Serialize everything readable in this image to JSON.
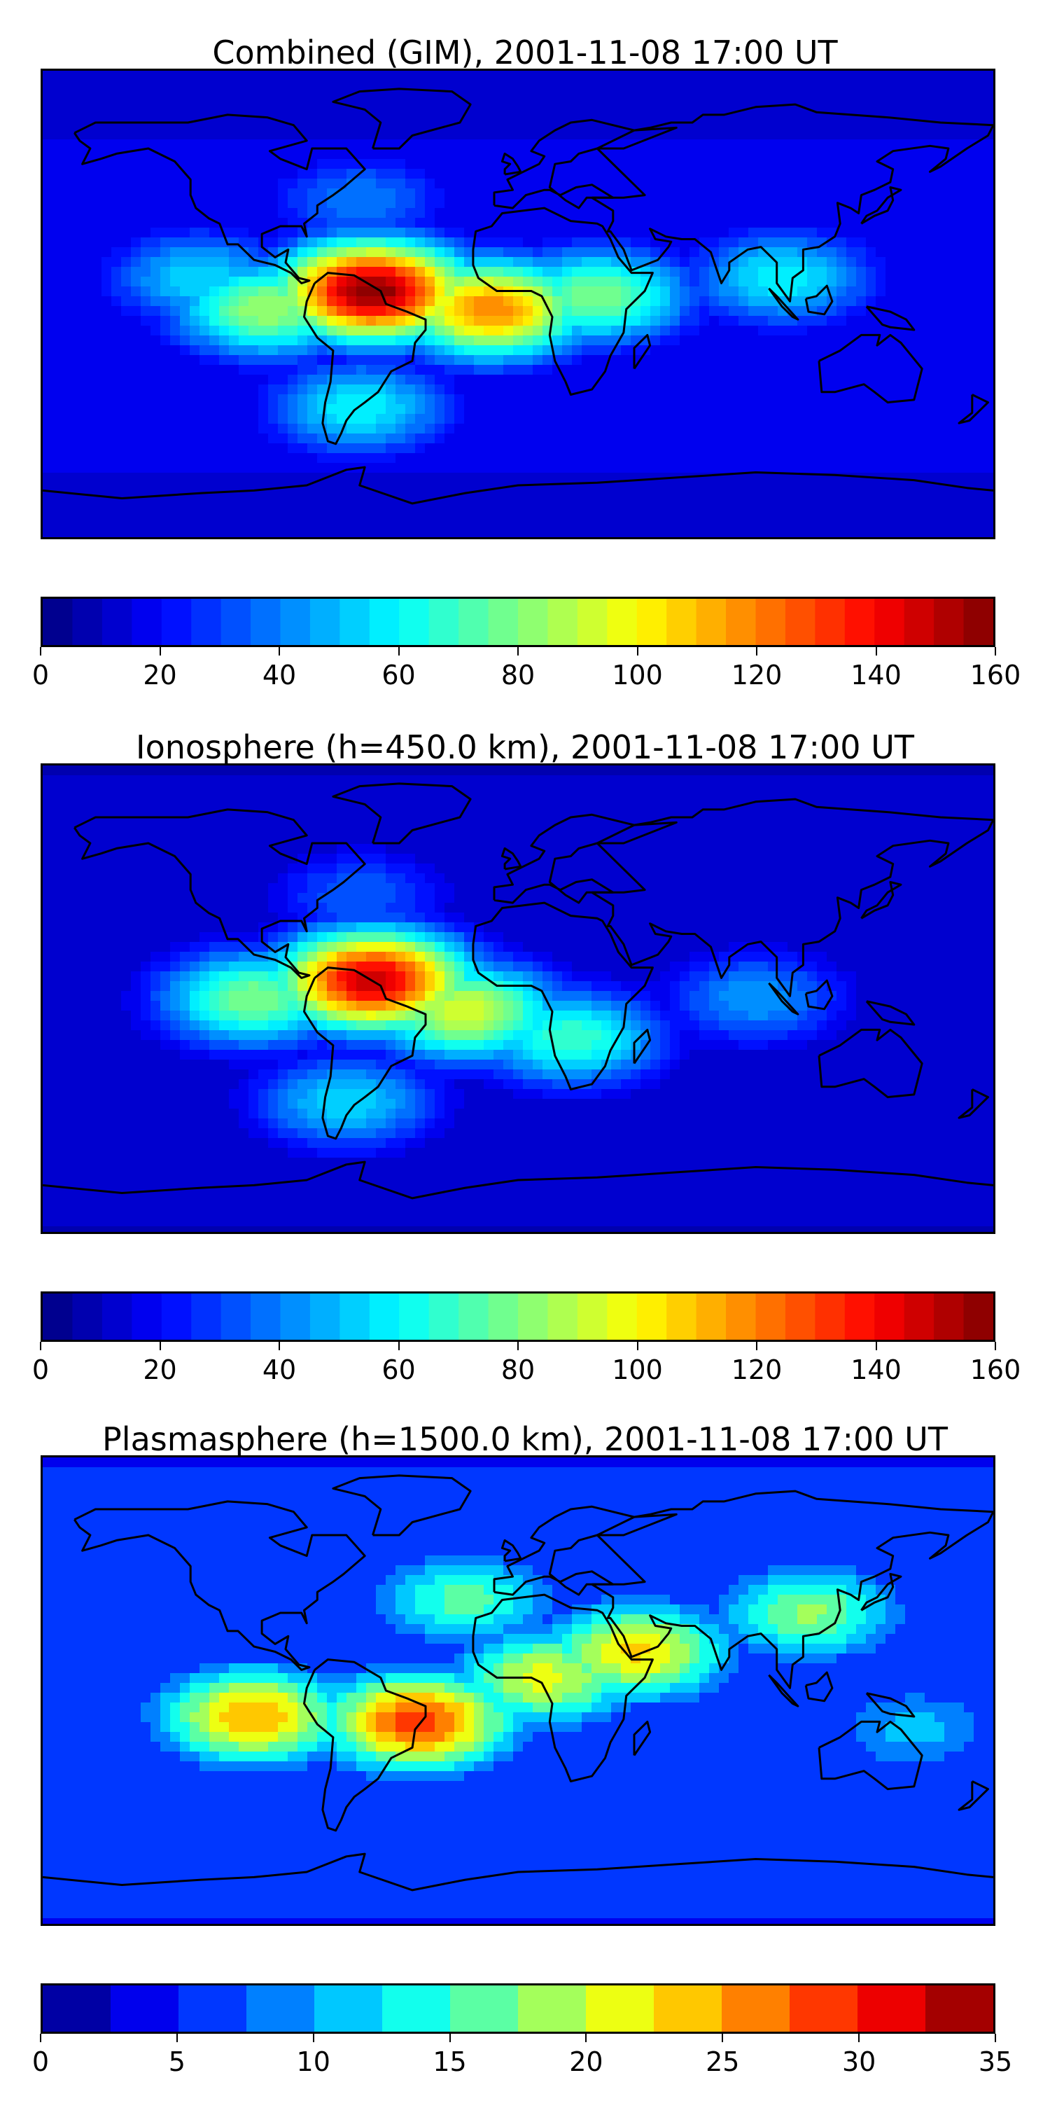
{
  "panels": [
    {
      "title": "Combined (GIM), 2001-11-08 17:00 UT",
      "colorbar": {
        "vmin": 0,
        "vmax": 160,
        "bands": 32,
        "ticks": [
          "0",
          "20",
          "40",
          "60",
          "80",
          "100",
          "120",
          "140",
          "160"
        ]
      },
      "field": {
        "background": 18,
        "blobs": [
          {
            "lon": -55,
            "lat": 5,
            "value": 160
          },
          {
            "lon": -10,
            "lat": -2,
            "value": 120
          },
          {
            "lon": -95,
            "lat": -2,
            "value": 85
          },
          {
            "lon": 30,
            "lat": 3,
            "value": 80
          },
          {
            "lon": 100,
            "lat": 10,
            "value": 60
          },
          {
            "lon": -60,
            "lat": -40,
            "value": 60
          },
          {
            "lon": -120,
            "lat": 10,
            "value": 55
          },
          {
            "lon": -60,
            "lat": 40,
            "value": 40
          }
        ]
      }
    },
    {
      "title": "Ionosphere  (h=450.0 km), 2001-11-08 17:00 UT",
      "colorbar": {
        "vmin": 0,
        "vmax": 160,
        "bands": 32,
        "ticks": [
          "0",
          "20",
          "40",
          "60",
          "80",
          "100",
          "120",
          "140",
          "160"
        ]
      },
      "field": {
        "background": 14,
        "blobs": [
          {
            "lon": -55,
            "lat": 7,
            "value": 150
          },
          {
            "lon": -20,
            "lat": -5,
            "value": 95
          },
          {
            "lon": -100,
            "lat": 0,
            "value": 80
          },
          {
            "lon": 20,
            "lat": -15,
            "value": 70
          },
          {
            "lon": 90,
            "lat": 0,
            "value": 45
          },
          {
            "lon": -65,
            "lat": -40,
            "value": 55
          },
          {
            "lon": -60,
            "lat": 40,
            "value": 35
          }
        ]
      }
    },
    {
      "title": "Plasmasphere (h=1500.0 km), 2001-11-08 17:00 UT",
      "colorbar": {
        "vmin": 0,
        "vmax": 35,
        "bands": 14,
        "ticks": [
          "0",
          "5",
          "10",
          "15",
          "20",
          "25",
          "30",
          "35"
        ]
      },
      "field": {
        "background": 7,
        "blobs": [
          {
            "lon": -38,
            "lat": -12,
            "value": 29
          },
          {
            "lon": -100,
            "lat": -10,
            "value": 25
          },
          {
            "lon": 45,
            "lat": 15,
            "value": 23
          },
          {
            "lon": 10,
            "lat": 5,
            "value": 21
          },
          {
            "lon": 110,
            "lat": 30,
            "value": 18
          },
          {
            "lon": -20,
            "lat": 35,
            "value": 16
          },
          {
            "lon": 150,
            "lat": -15,
            "value": 11
          }
        ]
      }
    }
  ]
}
